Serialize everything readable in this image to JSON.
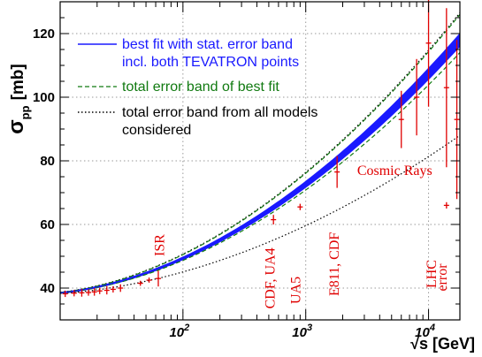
{
  "chart_data": {
    "type": "line",
    "xscale": "log",
    "xlim": [
      10,
      18000
    ],
    "ylim": [
      30,
      130
    ],
    "grid": true,
    "xlabel": "√s [GeV]",
    "ylabel_main": "σ",
    "ylabel_sub": "pp",
    "ylabel_unit": "[mb]",
    "y_ticks": [
      {
        "v": 40,
        "label": "40"
      },
      {
        "v": 60,
        "label": "60"
      },
      {
        "v": 80,
        "label": "80"
      },
      {
        "v": 100,
        "label": "100"
      },
      {
        "v": 120,
        "label": "120"
      }
    ],
    "x_ticks": [
      {
        "v": 100,
        "base": "10",
        "exp": "2"
      },
      {
        "v": 1000,
        "base": "10",
        "exp": "3"
      },
      {
        "v": 10000,
        "base": "10",
        "exp": "4"
      }
    ],
    "legend": {
      "placement": "top-left",
      "entries": [
        {
          "lines": [
            "best fit with stat. error band",
            "incl. both TEVATRON points"
          ],
          "style": "solid",
          "color": "#1a1aff"
        },
        {
          "lines": [
            "total error band of best fit"
          ],
          "style": "dashed",
          "color": "#117a11"
        },
        {
          "lines": [
            "total error band from all models",
            "considered"
          ],
          "style": "dotted",
          "color": "#000000"
        }
      ]
    },
    "x_grid": [
      10,
      18000
    ],
    "best_fit": {
      "name": "best fit with stat. error band",
      "y": [
        38.5,
        118.0
      ],
      "band_halfwidth": [
        0.3,
        2.2
      ]
    },
    "total_band_upper": {
      "name": "total error band of best fit",
      "y": [
        38.6,
        126.0
      ]
    },
    "total_band_lower": {
      "name": "total error band of best fit",
      "y": [
        38.4,
        114.0
      ]
    },
    "models_upper": {
      "name": "total error band from all models considered",
      "y": [
        38.7,
        126.5
      ]
    },
    "models_lower": {
      "name": "total error band from all models considered",
      "y": [
        38.3,
        88.0
      ]
    },
    "measurements": [
      {
        "x": 11,
        "y": 38.2,
        "err": 1.0
      },
      {
        "x": 13,
        "y": 38.4,
        "err": 1.0
      },
      {
        "x": 15,
        "y": 38.5,
        "err": 1.2
      },
      {
        "x": 17,
        "y": 38.6,
        "err": 1.0
      },
      {
        "x": 19,
        "y": 38.8,
        "err": 1.2
      },
      {
        "x": 21,
        "y": 39.1,
        "err": 1.0
      },
      {
        "x": 24,
        "y": 39.3,
        "err": 1.3
      },
      {
        "x": 27,
        "y": 39.6,
        "err": 1.0
      },
      {
        "x": 31,
        "y": 40.0,
        "err": 1.2
      },
      {
        "x": 45,
        "y": 41.5,
        "err": 0.8
      },
      {
        "x": 53,
        "y": 42.5,
        "err": 0.8
      },
      {
        "x": 63,
        "y": 43.0,
        "err": 2.5
      },
      {
        "x": 546,
        "y": 61.5,
        "err": 1.5
      },
      {
        "x": 900,
        "y": 65.5,
        "err": 1.0
      },
      {
        "x": 1800,
        "y": 76.5,
        "err": 5.0
      },
      {
        "x": 6000,
        "y": 93.0,
        "err": 9.0
      },
      {
        "x": 8000,
        "y": 100.0,
        "err": 12.0
      },
      {
        "x": 10000,
        "y": 117.0,
        "err": 20.0
      },
      {
        "x": 14000,
        "y": 103.0,
        "err": 25.0
      },
      {
        "x": 17000,
        "y": 93.0,
        "err": 25.0
      }
    ],
    "lhc_error_marker": {
      "x": 14000,
      "y": 66,
      "err": 1.0
    },
    "annotations": [
      {
        "text": "ISR",
        "x": 70,
        "y": 50,
        "rotate": true
      },
      {
        "text": "CDF, UA4",
        "x": 560,
        "y": 33.5,
        "rotate": true
      },
      {
        "text": "UA5",
        "x": 900,
        "y": 35,
        "rotate": true
      },
      {
        "text": "E811, CDF",
        "x": 1850,
        "y": 37.5,
        "rotate": true
      },
      {
        "text": "LHC",
        "x": 11500,
        "y": 40,
        "rotate": true
      },
      {
        "text": "error",
        "x": 14000,
        "y": 39,
        "rotate": true
      },
      {
        "text": "Cosmic Rays",
        "x": 5300,
        "y": 75.5,
        "rotate": false
      }
    ]
  }
}
